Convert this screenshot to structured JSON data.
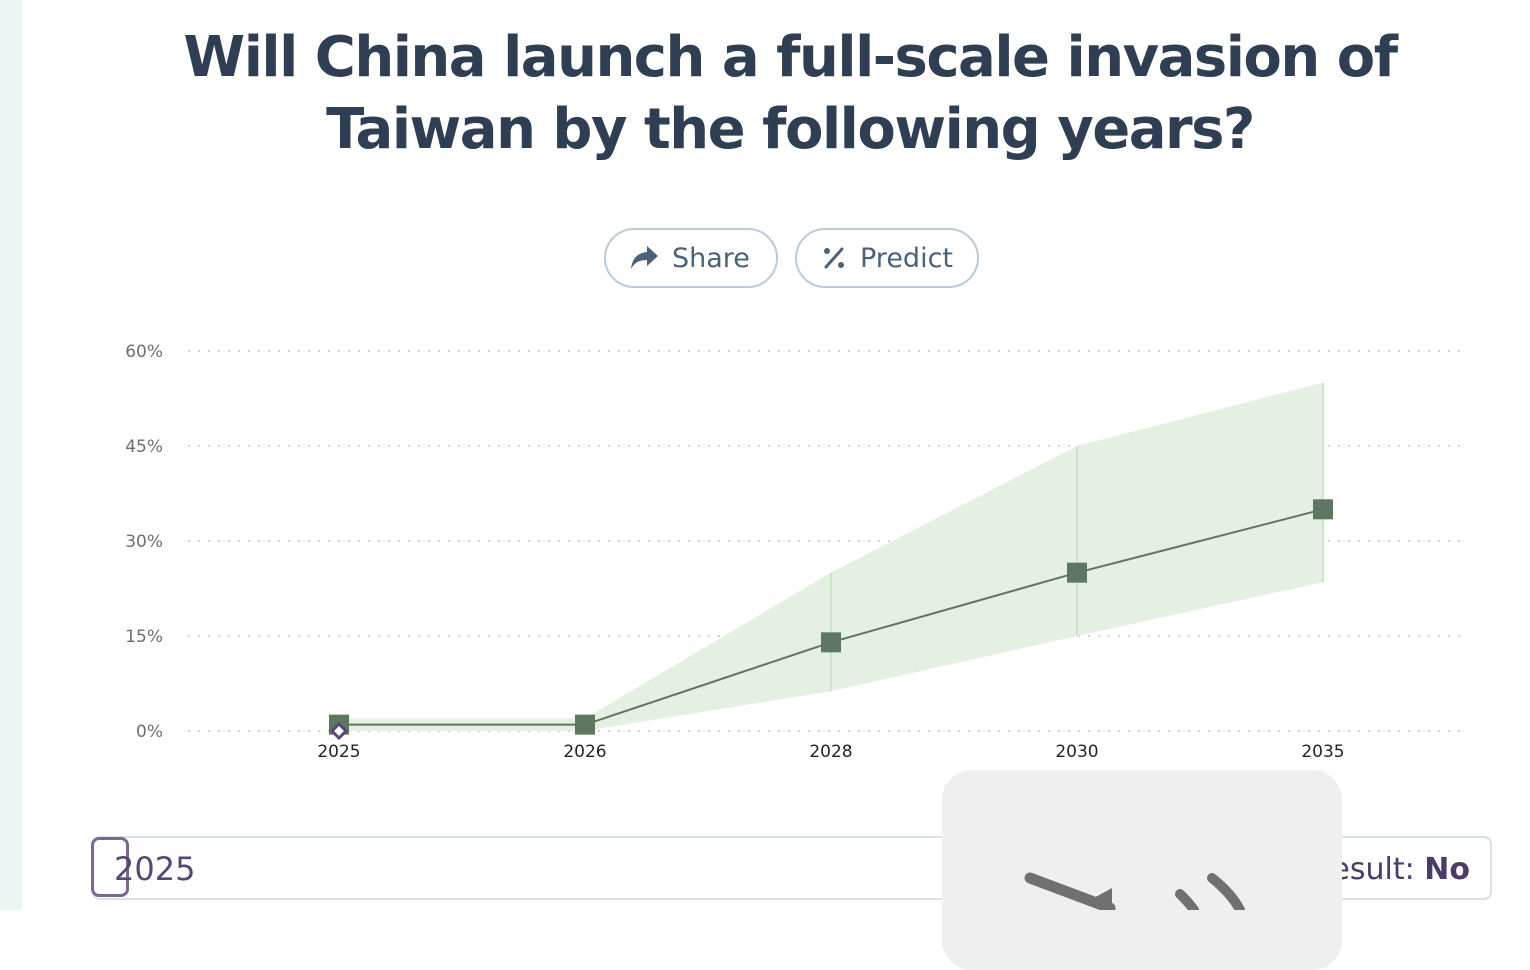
{
  "question": {
    "title": "Will China launch a full-scale invasion of Taiwan by the following years?"
  },
  "actions": {
    "share_label": "Share",
    "share_icon": "share-arrow-icon",
    "predict_label": "Predict",
    "predict_icon": "percent-icon"
  },
  "chart_data": {
    "type": "line",
    "title": "",
    "xlabel": "",
    "ylabel": "",
    "x_categories": [
      "2025",
      "2026",
      "2028",
      "2030",
      "2035"
    ],
    "y_ticks": [
      "0%",
      "15%",
      "30%",
      "45%",
      "60%"
    ],
    "ylim": [
      0,
      60
    ],
    "grid": "horizontal-dotted",
    "series": [
      {
        "values": [
          1,
          1,
          14,
          25,
          35
        ],
        "lower": [
          0,
          0,
          6.3,
          15,
          23.5
        ],
        "upper": [
          2,
          2,
          25,
          45,
          55
        ],
        "color": "#5f7661",
        "band_color": "#e4f0e2",
        "marker": "square"
      }
    ],
    "resolved_marker": {
      "x": "2025",
      "y": 0,
      "marker": "diamond",
      "color": "#5a4672"
    }
  },
  "outcome": {
    "year": "2025",
    "result_prefix": "Result: ",
    "result_value": "No"
  },
  "colors": {
    "title": "#2f3e52",
    "button_border": "#bccbd9",
    "accent_purple": "#5a4672",
    "series": "#5f7661"
  }
}
